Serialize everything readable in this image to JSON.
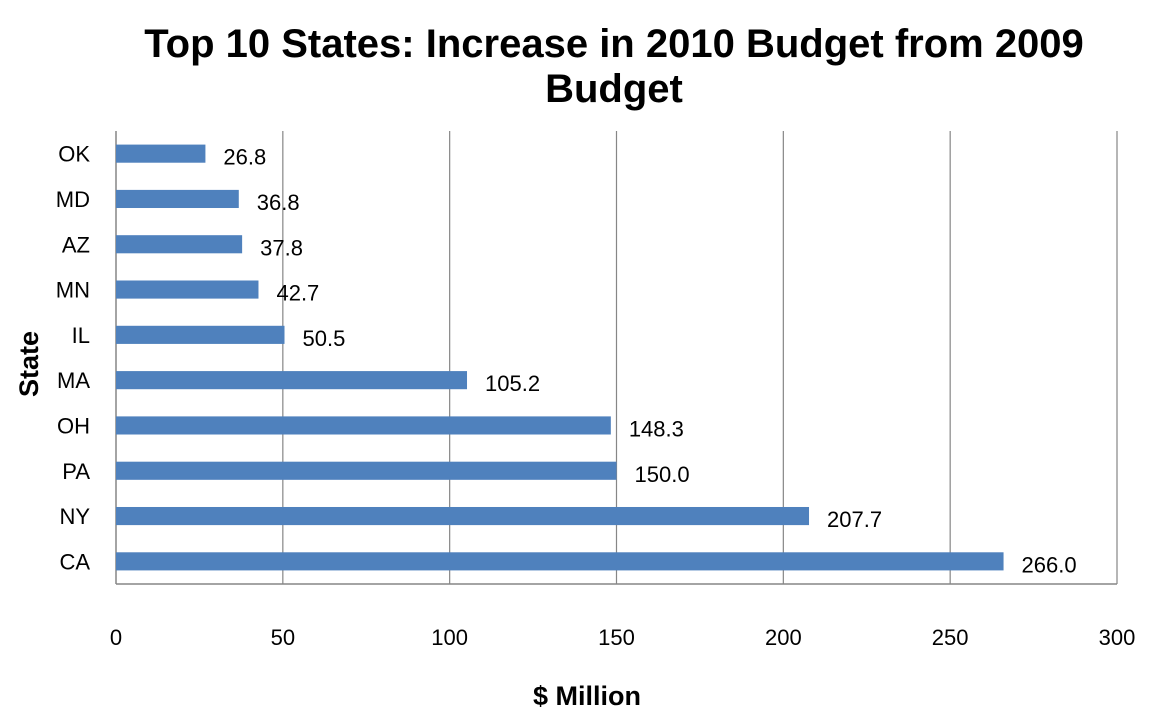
{
  "chart_data": {
    "type": "bar",
    "orientation": "horizontal",
    "title": "Top 10 States:  Increase in 2010 Budget from 2009 Budget",
    "title_lines": [
      "Top 10 States:  Increase in 2010 Budget from 2009",
      "Budget"
    ],
    "xlabel": "$ Million",
    "ylabel": "State",
    "categories": [
      "OK",
      "MD",
      "AZ",
      "MN",
      "IL",
      "MA",
      "OH",
      "PA",
      "NY",
      "CA"
    ],
    "values": [
      26.8,
      36.8,
      37.8,
      42.7,
      50.5,
      105.2,
      148.3,
      150.0,
      207.7,
      266.0
    ],
    "data_labels": [
      "26.8",
      "36.8",
      "37.8",
      "42.7",
      "50.5",
      "105.2",
      "148.3",
      "150.0",
      "207.7",
      "266.0"
    ],
    "xlim": [
      0,
      300
    ],
    "xticks": [
      0,
      50,
      100,
      150,
      200,
      250,
      300
    ],
    "grid": "vertical",
    "legend": "none",
    "colors": {
      "bar": "#4F81BD",
      "grid": "#868686",
      "axis": "#868686"
    }
  }
}
